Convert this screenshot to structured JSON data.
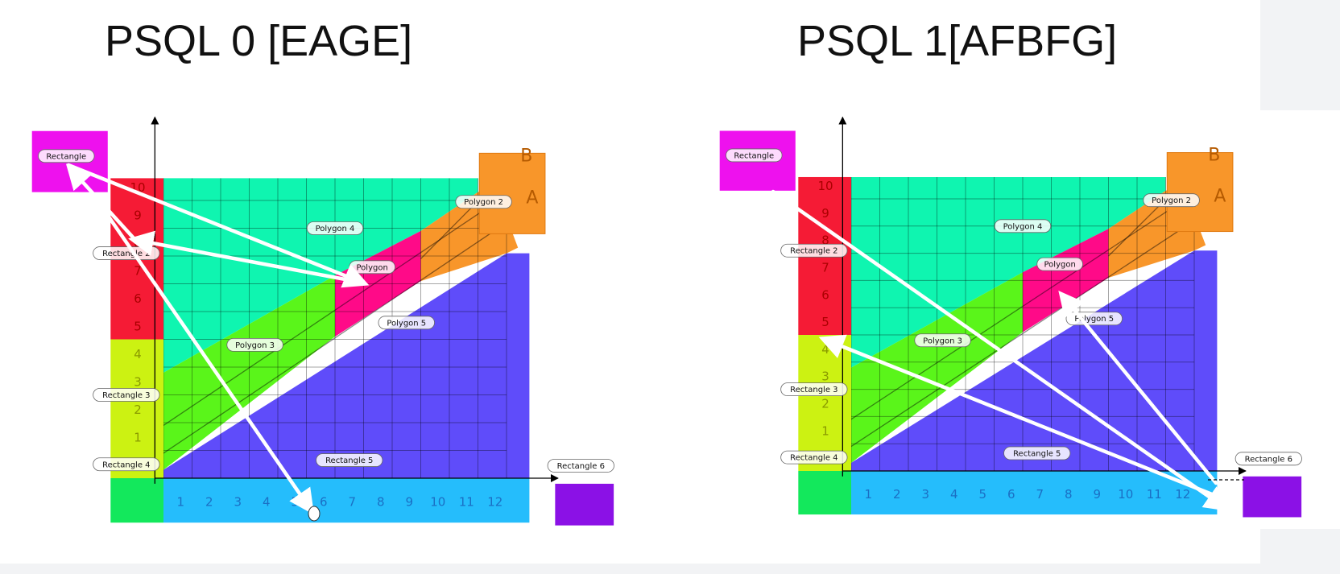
{
  "panels": [
    {
      "title": "PSQL 0 [EAGE]",
      "shape_labels": {
        "rectangle": "Rectangle",
        "rectangle2": "Rectangle 2",
        "rectangle3": "Rectangle 3",
        "rectangle4": "Rectangle 4",
        "rectangle5": "Rectangle 5",
        "rectangle6": "Rectangle 6",
        "polygon": "Polygon",
        "polygon2": "Polygon 2",
        "polygon3": "Polygon 3",
        "polygon4": "Polygon 4",
        "polygon5": "Polygon 5"
      },
      "corner_letters": [
        "B",
        "A"
      ],
      "x_ticks": [
        "1",
        "2",
        "3",
        "4",
        "5",
        "6",
        "7",
        "8",
        "9",
        "10",
        "11",
        "12"
      ],
      "y_ticks": [
        "1",
        "2",
        "3",
        "4",
        "5",
        "6",
        "7",
        "8",
        "9",
        "10"
      ],
      "path": [
        "E",
        "A",
        "G",
        "E"
      ]
    },
    {
      "title": "PSQL 1[AFBFG]",
      "shape_labels": {
        "rectangle": "Rectangle",
        "rectangle2": "Rectangle 2",
        "rectangle3": "Rectangle 3",
        "rectangle4": "Rectangle 4",
        "rectangle5": "Rectangle 5",
        "rectangle6": "Rectangle 6",
        "polygon": "Polygon",
        "polygon2": "Polygon 2",
        "polygon3": "Polygon 3",
        "polygon4": "Polygon 4",
        "polygon5": "Polygon 5"
      },
      "corner_letters": [
        "B",
        "A"
      ],
      "x_ticks": [
        "1",
        "2",
        "3",
        "4",
        "5",
        "6",
        "7",
        "8",
        "9",
        "10",
        "11",
        "12"
      ],
      "y_ticks": [
        "1",
        "2",
        "3",
        "4",
        "5",
        "6",
        "7",
        "8",
        "9",
        "10"
      ],
      "path": [
        "A",
        "F",
        "B",
        "F",
        "G"
      ]
    }
  ],
  "colors": {
    "magenta": "#ee11ee",
    "red": "#f51b35",
    "lime": "#ccf212",
    "green_box": "#13e85c",
    "cyan": "#25bdfc",
    "purple": "#8b11e6",
    "teal": "#0ff5b0",
    "bright_green": "#5af51a",
    "pink": "#ff0a88",
    "orange": "#f8962a",
    "blue": "#5f4cfa"
  }
}
